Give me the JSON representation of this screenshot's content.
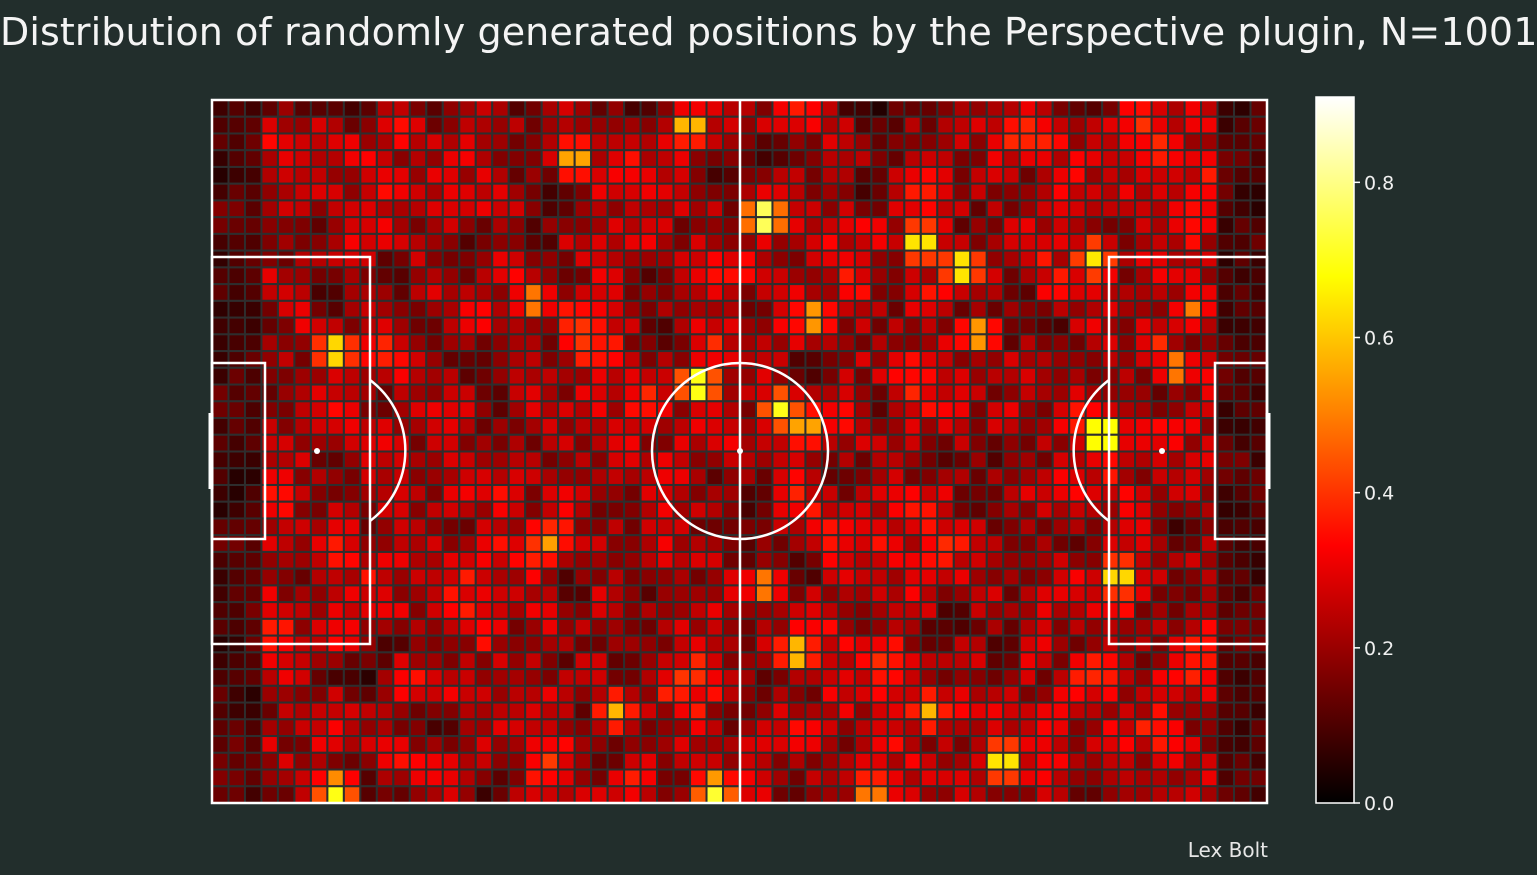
{
  "chart_data": {
    "type": "heatmap",
    "title": "Distribution of randomly generated positions by the Perspective plugin, N=1001",
    "grid": {
      "cols": 64,
      "rows": 42
    },
    "colormap": "hot",
    "vmin": 0.0,
    "vmax": 0.91,
    "colorbar": {
      "ticks": [
        0.0,
        0.2,
        0.4,
        0.6,
        0.8
      ],
      "tick_labels": [
        "0.0",
        "0.2",
        "0.4",
        "0.6",
        "0.8"
      ],
      "range": [
        0.0,
        0.91
      ]
    },
    "hotspots": [
      {
        "x": 28.5,
        "y": 1,
        "v": 0.65
      },
      {
        "x": 21.5,
        "y": 3,
        "v": 0.62
      },
      {
        "x": 33,
        "y": 6.5,
        "v": 0.85
      },
      {
        "x": 42.5,
        "y": 8,
        "v": 0.72
      },
      {
        "x": 45,
        "y": 9.5,
        "v": 0.72
      },
      {
        "x": 53,
        "y": 9,
        "v": 0.65
      },
      {
        "x": 7,
        "y": 14.5,
        "v": 0.7
      },
      {
        "x": 19,
        "y": 11.5,
        "v": 0.55
      },
      {
        "x": 36,
        "y": 12.5,
        "v": 0.6
      },
      {
        "x": 46,
        "y": 13.5,
        "v": 0.6
      },
      {
        "x": 29,
        "y": 16.5,
        "v": 0.78
      },
      {
        "x": 34,
        "y": 18,
        "v": 0.7
      },
      {
        "x": 35.5,
        "y": 19,
        "v": 0.62
      },
      {
        "x": 53.5,
        "y": 19.5,
        "v": 0.85
      },
      {
        "x": 58,
        "y": 15.5,
        "v": 0.55
      },
      {
        "x": 54.5,
        "y": 28,
        "v": 0.7
      },
      {
        "x": 20,
        "y": 26,
        "v": 0.55
      },
      {
        "x": 33,
        "y": 28.5,
        "v": 0.55
      },
      {
        "x": 35,
        "y": 32.5,
        "v": 0.65
      },
      {
        "x": 24,
        "y": 36,
        "v": 0.58
      },
      {
        "x": 43,
        "y": 36,
        "v": 0.58
      },
      {
        "x": 47.5,
        "y": 39,
        "v": 0.72
      },
      {
        "x": 7,
        "y": 41,
        "v": 0.82
      },
      {
        "x": 30,
        "y": 41,
        "v": 0.85
      },
      {
        "x": 39.5,
        "y": 41,
        "v": 0.65
      },
      {
        "x": 59,
        "y": 12,
        "v": 0.5
      }
    ]
  },
  "credit": "Lex Bolt"
}
